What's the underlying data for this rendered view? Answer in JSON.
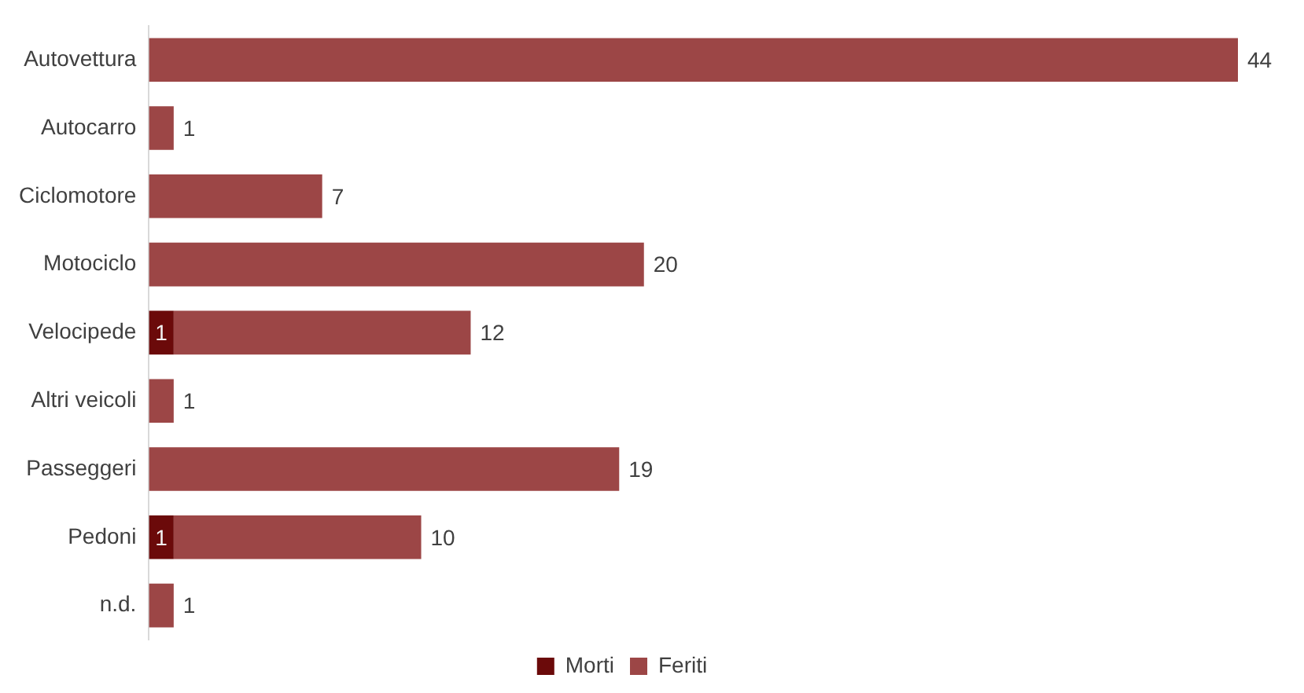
{
  "chart_data": {
    "type": "bar",
    "orientation": "horizontal",
    "stacked": true,
    "categories": [
      "Autovettura",
      "Autocarro",
      "Ciclomotore",
      "Motociclo",
      "Velocipede",
      "Altri veicoli",
      "Passeggeri",
      "Pedoni",
      "n.d."
    ],
    "series": [
      {
        "name": "Morti",
        "color": "#6b0a0a",
        "values": [
          null,
          null,
          null,
          null,
          1,
          null,
          null,
          1,
          null
        ],
        "value_labels": [
          null,
          null,
          null,
          null,
          "1",
          null,
          null,
          "1",
          null
        ]
      },
      {
        "name": "Feriti",
        "color": "#9c4646",
        "values": [
          44,
          1,
          7,
          20,
          12,
          1,
          19,
          10,
          1
        ],
        "value_labels": [
          "44",
          "1",
          "7",
          "20",
          "12",
          "1",
          "19",
          "10",
          "1"
        ]
      }
    ],
    "legend": "bottom",
    "grid": false,
    "tick_labels": "y"
  }
}
